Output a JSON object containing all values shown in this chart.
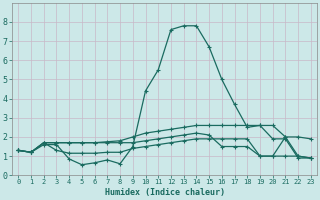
{
  "xlabel": "Humidex (Indice chaleur)",
  "xlim": [
    -0.5,
    23.5
  ],
  "ylim": [
    0,
    9
  ],
  "xticks": [
    0,
    1,
    2,
    3,
    4,
    5,
    6,
    7,
    8,
    9,
    10,
    11,
    12,
    13,
    14,
    15,
    16,
    17,
    18,
    19,
    20,
    21,
    22,
    23
  ],
  "yticks": [
    0,
    1,
    2,
    3,
    4,
    5,
    6,
    7,
    8
  ],
  "bg_color": "#cce8e8",
  "line_color": "#1a6b60",
  "grid_color": "#b8d8d8",
  "series": [
    [
      1.3,
      1.2,
      1.6,
      1.6,
      0.85,
      0.55,
      0.65,
      0.8,
      0.6,
      1.5,
      4.4,
      5.5,
      7.6,
      7.8,
      7.8,
      6.7,
      5.0,
      3.7,
      2.5,
      2.6,
      1.9,
      1.9,
      0.9,
      0.9
    ],
    [
      1.3,
      1.2,
      1.7,
      1.7,
      1.7,
      1.7,
      1.7,
      1.75,
      1.8,
      2.0,
      2.2,
      2.3,
      2.4,
      2.5,
      2.6,
      2.6,
      2.6,
      2.6,
      2.6,
      2.6,
      2.6,
      2.0,
      2.0,
      1.9
    ],
    [
      1.3,
      1.2,
      1.7,
      1.7,
      1.7,
      1.7,
      1.7,
      1.7,
      1.7,
      1.7,
      1.8,
      1.9,
      2.0,
      2.1,
      2.2,
      2.1,
      1.5,
      1.5,
      1.5,
      1.0,
      1.0,
      2.0,
      1.0,
      0.9
    ],
    [
      1.3,
      1.2,
      1.7,
      1.3,
      1.15,
      1.15,
      1.15,
      1.2,
      1.2,
      1.4,
      1.5,
      1.6,
      1.7,
      1.8,
      1.9,
      1.9,
      1.9,
      1.9,
      1.9,
      1.0,
      1.0,
      1.0,
      1.0,
      0.9
    ]
  ]
}
